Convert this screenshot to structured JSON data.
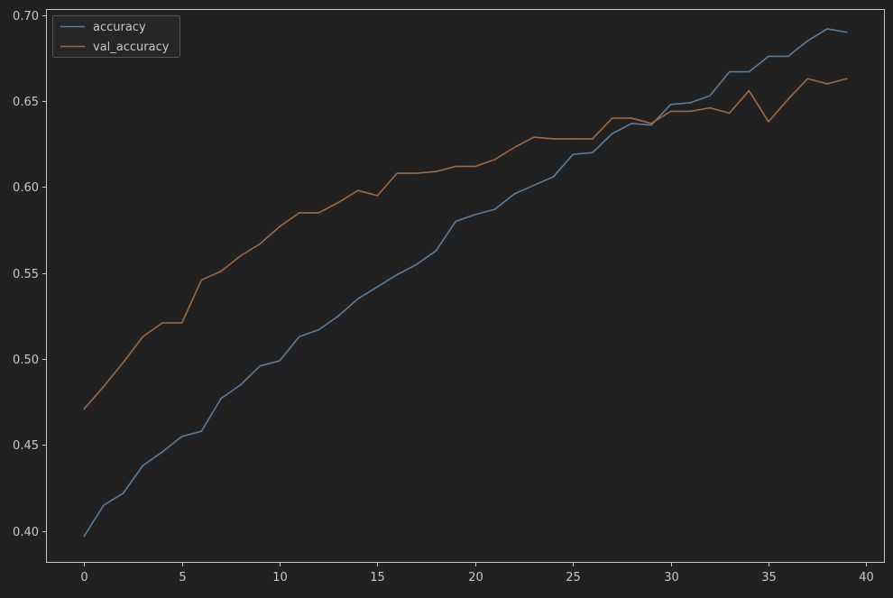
{
  "chart_data": {
    "type": "line",
    "title": "",
    "xlabel": "",
    "ylabel": "",
    "xlim": [
      -1.95,
      40.95
    ],
    "ylim": [
      0.3815,
      0.7035
    ],
    "grid": false,
    "legend_position": "top-left",
    "xticks": [
      0,
      5,
      10,
      15,
      20,
      25,
      30,
      35,
      40
    ],
    "yticks": [
      0.4,
      0.45,
      0.5,
      0.55,
      0.6,
      0.65,
      0.7
    ],
    "xtick_labels": [
      "0",
      "5",
      "10",
      "15",
      "20",
      "25",
      "30",
      "35",
      "40"
    ],
    "ytick_labels": [
      "0.40",
      "0.45",
      "0.50",
      "0.55",
      "0.60",
      "0.65",
      "0.70"
    ],
    "x": [
      0,
      1,
      2,
      3,
      4,
      5,
      6,
      7,
      8,
      9,
      10,
      11,
      12,
      13,
      14,
      15,
      16,
      17,
      18,
      19,
      20,
      21,
      22,
      23,
      24,
      25,
      26,
      27,
      28,
      29,
      30,
      31,
      32,
      33,
      34,
      35,
      36,
      37,
      38,
      39
    ],
    "series": [
      {
        "name": "accuracy",
        "color": "#5b7f9c",
        "values": [
          0.397,
          0.415,
          0.422,
          0.438,
          0.446,
          0.455,
          0.458,
          0.477,
          0.485,
          0.496,
          0.499,
          0.513,
          0.517,
          0.525,
          0.535,
          0.542,
          0.549,
          0.555,
          0.563,
          0.58,
          0.584,
          0.587,
          0.596,
          0.601,
          0.606,
          0.619,
          0.62,
          0.631,
          0.637,
          0.636,
          0.648,
          0.649,
          0.653,
          0.667,
          0.667,
          0.676,
          0.676,
          0.685,
          0.692,
          0.69
        ]
      },
      {
        "name": "val_accuracy",
        "color": "#a06a45",
        "values": [
          0.471,
          0.484,
          0.498,
          0.513,
          0.521,
          0.521,
          0.546,
          0.551,
          0.56,
          0.567,
          0.577,
          0.585,
          0.585,
          0.591,
          0.598,
          0.595,
          0.608,
          0.608,
          0.609,
          0.612,
          0.612,
          0.616,
          0.623,
          0.629,
          0.628,
          0.628,
          0.628,
          0.64,
          0.64,
          0.637,
          0.644,
          0.644,
          0.646,
          0.643,
          0.656,
          0.638,
          0.651,
          0.663,
          0.66,
          0.663
        ]
      }
    ]
  },
  "colors": {
    "background": "#212121",
    "axes_edge": "#c9c9c9",
    "tick_text": "#c9c9c9",
    "legend_bg": "#262626",
    "legend_edge": "#555555"
  }
}
